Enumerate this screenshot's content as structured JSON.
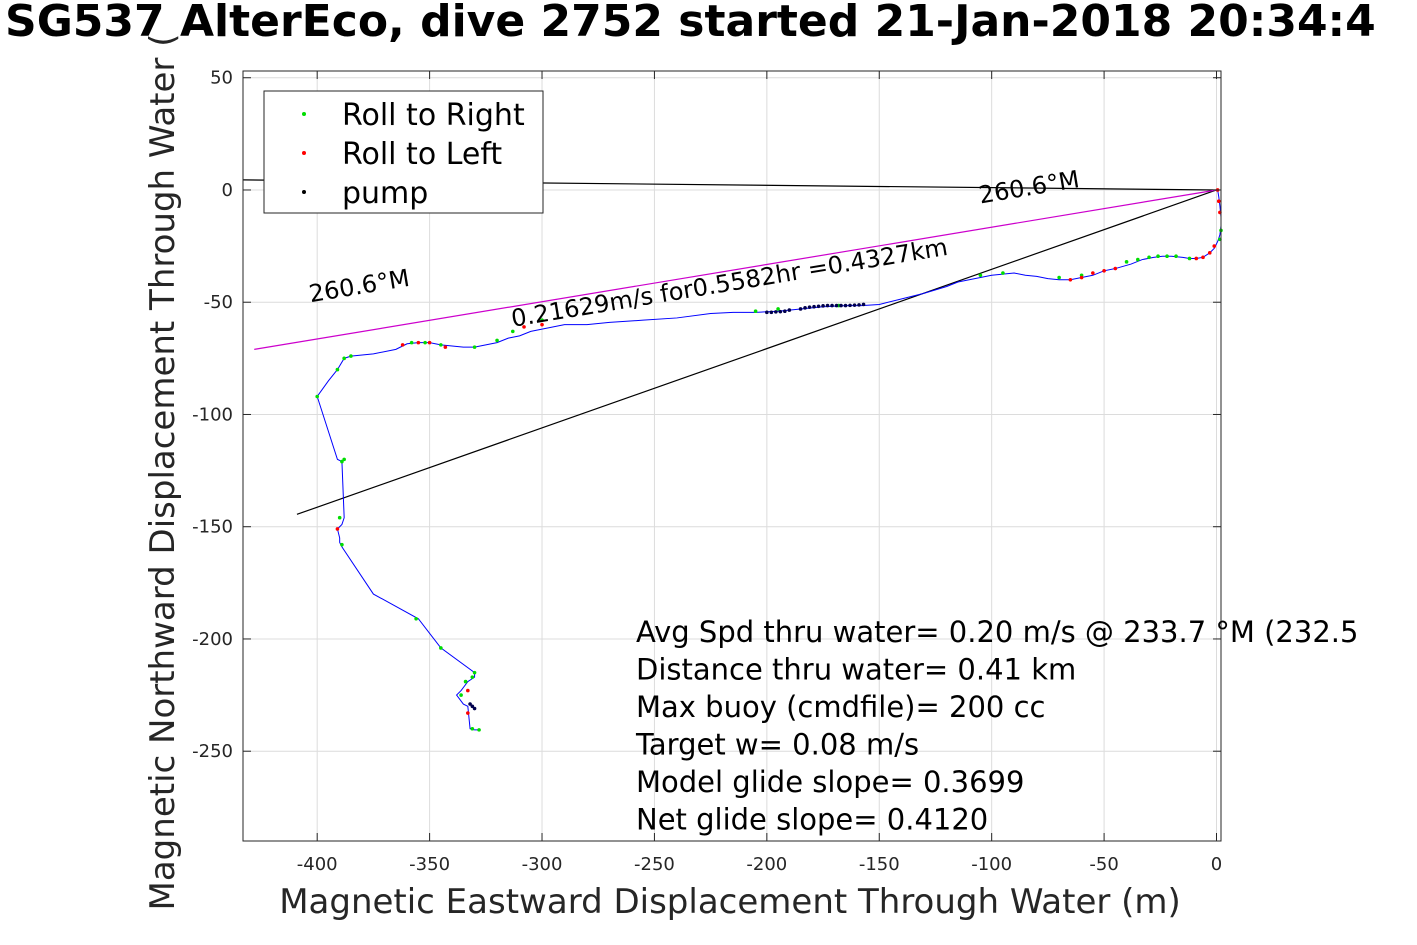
{
  "chart_data": {
    "type": "scatter",
    "title": "SG537 AlterEco, dive 2752 started 21-Jan-2018 20:34:4",
    "xlabel": "Magnetic Eastward Displacement Through Water (m)",
    "ylabel": "Magnetic Northward Displacement Through Water (",
    "xlim": [
      -433,
      2
    ],
    "ylim": [
      -290,
      53
    ],
    "xticks": [
      -400,
      -350,
      -300,
      -250,
      -200,
      -150,
      -100,
      -50,
      0
    ],
    "yticks": [
      50,
      0,
      -50,
      -100,
      -150,
      -200,
      -250
    ],
    "grid": true,
    "legend_position": "top-left",
    "legend": [
      {
        "label": "Roll to Right",
        "color": "#00dd00"
      },
      {
        "label": "Roll to Left",
        "color": "#ff0000"
      },
      {
        "label": "pump",
        "color": "#000000"
      }
    ],
    "series": [
      {
        "name": "track",
        "color": "#0000ff",
        "x": [
          0.5,
          1,
          1.5,
          2,
          2,
          1.5,
          0.5,
          -1,
          -3,
          -6,
          -9,
          -12,
          -15,
          -20,
          -24,
          -28,
          -33,
          -38,
          -45,
          -50,
          -55,
          -60,
          -65,
          -70,
          -75,
          -80,
          -85,
          -90,
          -95,
          -100,
          -105,
          -110,
          -115,
          -120,
          -130,
          -140,
          -150,
          -158,
          -165,
          -175,
          -185,
          -195,
          -205,
          -215,
          -225,
          -240,
          -255,
          -270,
          -280,
          -290,
          -300,
          -305,
          -310,
          -315,
          -320,
          -325,
          -330,
          -335,
          -340,
          -345,
          -350,
          -355,
          -360,
          -362,
          -365,
          -375,
          -385,
          -388,
          -391,
          -395,
          -400,
          -391,
          -389,
          -388,
          -389,
          -391,
          -390,
          -390,
          -389,
          -375,
          -355,
          -345,
          -330,
          -330,
          -333,
          -336,
          -338,
          -335,
          -333,
          -332,
          -330,
          -328
        ],
        "y": [
          0,
          -3,
          -7,
          -12,
          -16,
          -20,
          -23,
          -26,
          -28,
          -30,
          -30.5,
          -30.5,
          -30,
          -29.5,
          -29.5,
          -30,
          -31,
          -33,
          -35,
          -36,
          -38,
          -39,
          -40,
          -40,
          -39.5,
          -38.5,
          -38,
          -37,
          -37.5,
          -38,
          -39,
          -40,
          -41,
          -43,
          -46,
          -48.5,
          -51,
          -51.5,
          -51.5,
          -52,
          -53,
          -54,
          -54.5,
          -54.5,
          -55,
          -57,
          -58,
          -59,
          -60,
          -60,
          -62,
          -63,
          -65,
          -66,
          -68,
          -69,
          -70,
          -70,
          -69.5,
          -69,
          -68,
          -68,
          -68.5,
          -69.5,
          -71,
          -73,
          -74,
          -75,
          -80,
          -85,
          -92,
          -120,
          -121,
          -146,
          -149,
          -151,
          -155,
          -157,
          -159,
          -180,
          -191,
          -204,
          -215,
          -217,
          -219,
          -223,
          -225,
          -229,
          -230,
          -240,
          -240.5,
          -240.5
        ]
      },
      {
        "name": "Roll to Right",
        "color": "#00dd00",
        "x": [
          2,
          1.5,
          -12,
          -18,
          -22,
          -26,
          -30,
          -35,
          -40,
          -60,
          -70,
          -95,
          -105,
          -168,
          -195,
          -205,
          -300,
          -313,
          -320,
          -330,
          -345,
          -352,
          -358,
          -385,
          -388,
          -391,
          -400,
          -388,
          -389,
          -390,
          -389,
          -356,
          -345,
          -330,
          -331,
          -334,
          -336,
          -331,
          -328
        ],
        "y": [
          -18,
          -22,
          -30.5,
          -29.5,
          -29.5,
          -29.5,
          -30,
          -31,
          -32,
          -38,
          -39,
          -37,
          -38,
          -51.5,
          -53,
          -54,
          -58,
          -63,
          -67,
          -70,
          -69,
          -68,
          -68,
          -74,
          -75,
          -80,
          -92,
          -120,
          -121,
          -146,
          -158,
          -191,
          -204,
          -215,
          -217,
          -219,
          -225,
          -240,
          -240.5
        ]
      },
      {
        "name": "Roll to Left",
        "color": "#ff0000",
        "x": [
          0.5,
          1,
          1.5,
          -1,
          -3,
          -6,
          -9,
          -65,
          -60,
          -55,
          -50,
          -45,
          -300,
          -308,
          -350,
          -355,
          -362,
          -343,
          -391,
          -333,
          -333
        ],
        "y": [
          0,
          -5,
          -10,
          -25,
          -28,
          -30,
          -30.5,
          -40,
          -39,
          -37,
          -36,
          -35,
          -60,
          -61,
          -68,
          -68,
          -69,
          -70,
          -151,
          -223,
          -233
        ]
      },
      {
        "name": "pump",
        "color": "#00004d",
        "x": [
          -200,
          -198,
          -196,
          -194,
          -192,
          -190,
          -185,
          -183,
          -181,
          -179,
          -177,
          -175,
          -173,
          -171,
          -169,
          -167,
          -165,
          -163,
          -161,
          -159,
          -157,
          -332,
          -331,
          -330
        ],
        "y": [
          -54.5,
          -54.5,
          -54.3,
          -54.2,
          -54,
          -53.5,
          -53,
          -52.5,
          -52.2,
          -52,
          -51.8,
          -51.6,
          -51.5,
          -51.5,
          -51.5,
          -51.5,
          -51.5,
          -51.4,
          -51.3,
          -51.2,
          -51,
          -229,
          -230,
          -231
        ]
      }
    ],
    "reference_lines": [
      {
        "name": "upper bearing line",
        "color": "#000000",
        "x": [
          -433,
          0
        ],
        "y": [
          4.5,
          0
        ]
      },
      {
        "name": "lower bearing line",
        "color": "#000000",
        "x": [
          -409,
          0
        ],
        "y": [
          -144.5,
          0
        ]
      },
      {
        "name": "heading line 260.6°M",
        "color": "#cc00cc",
        "x": [
          -428,
          0
        ],
        "y": [
          -71,
          0
        ]
      }
    ],
    "annotations": [
      {
        "text": "260.6°M",
        "x": -403,
        "y": -50,
        "rotated": true
      },
      {
        "text": "0.21629m/s for0.5582hr =0.4327km",
        "x": -313,
        "y": -61,
        "rotated": true
      },
      {
        "text": "260.6°M",
        "x": -105,
        "y": -6,
        "rotated": true
      }
    ],
    "stats": [
      "Avg Spd thru water=  0.20 m/s @ 233.7 °M (232.5",
      "Distance thru water=  0.41 km",
      "Max buoy (cmdfile)= 200 cc",
      "Target w= 0.08 m/s",
      "Model glide slope= 0.3699",
      "Net glide slope= 0.4120"
    ]
  }
}
